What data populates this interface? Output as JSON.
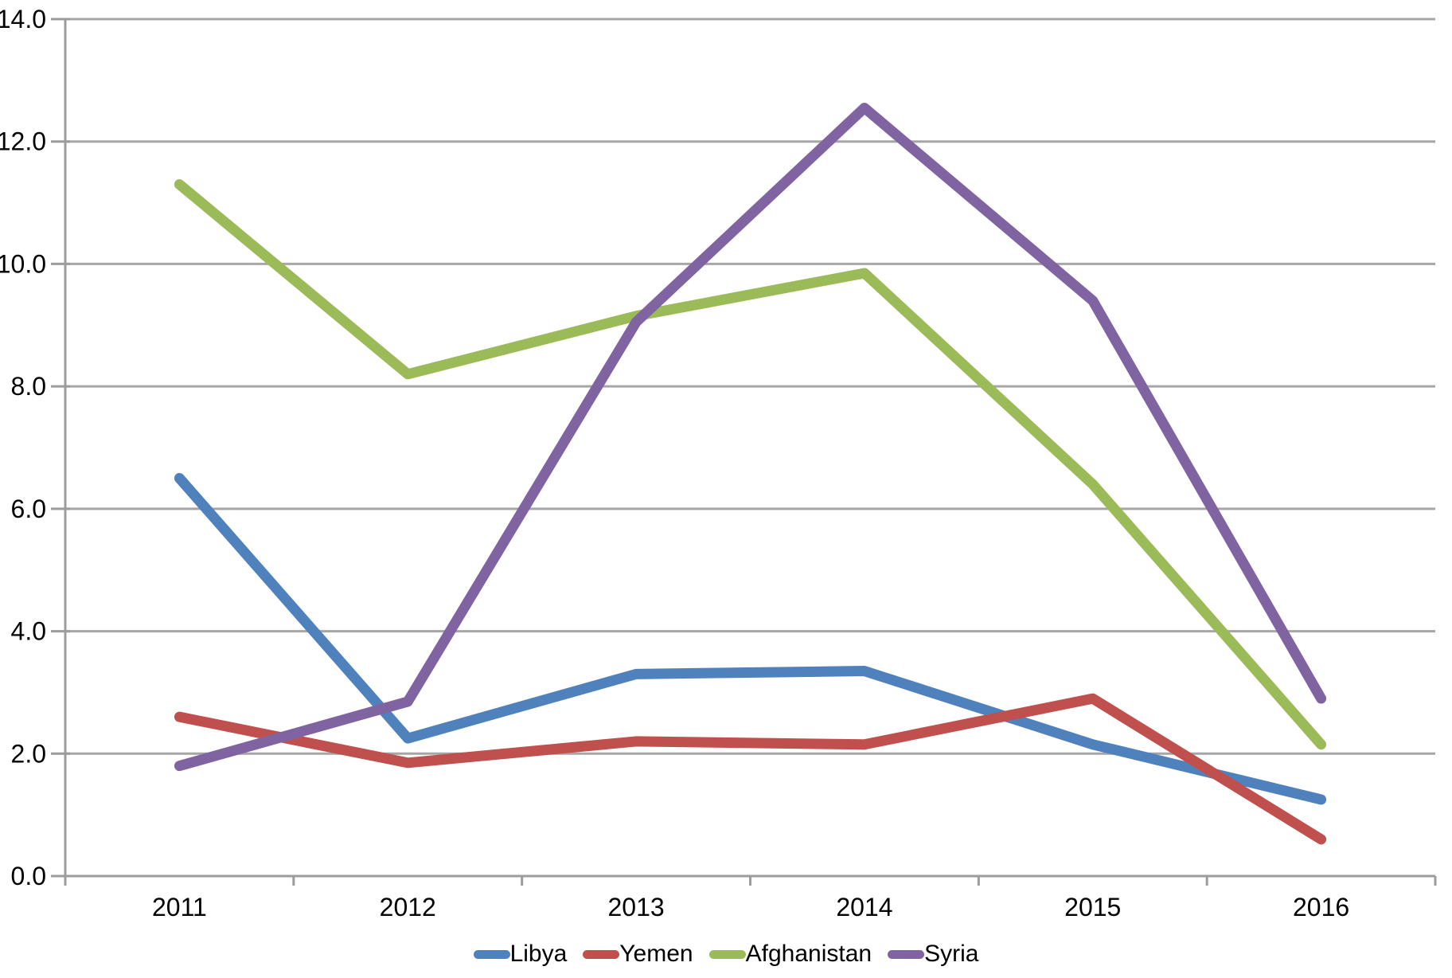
{
  "chart_data": {
    "type": "line",
    "categories": [
      "2011",
      "2012",
      "2013",
      "2014",
      "2015",
      "2016"
    ],
    "series": [
      {
        "name": "Libya",
        "color": "#4F81BD",
        "values": [
          6.5,
          2.25,
          3.3,
          3.35,
          2.15,
          1.25
        ]
      },
      {
        "name": "Yemen",
        "color": "#C0504D",
        "values": [
          2.6,
          1.85,
          2.2,
          2.15,
          2.9,
          0.6
        ]
      },
      {
        "name": "Afghanistan",
        "color": "#9BBB59",
        "values": [
          11.3,
          8.2,
          9.15,
          9.85,
          6.4,
          2.15
        ]
      },
      {
        "name": "Syria",
        "color": "#8064A2",
        "values": [
          1.8,
          2.85,
          9.05,
          12.55,
          9.4,
          2.9
        ]
      }
    ],
    "title": "",
    "xlabel": "",
    "ylabel": "",
    "ylim": [
      0,
      14
    ],
    "ytick_step": 2,
    "ytick_labels": [
      "0.0",
      "2.0",
      "4.0",
      "6.0",
      "8.0",
      "10.0",
      "12.0",
      "14.0"
    ],
    "grid": true,
    "legend_position": "bottom",
    "colors": {
      "grid_line": "#A6A6A6",
      "axis_line": "#9C9C9C",
      "text": "#000000",
      "background": "#FFFFFF"
    }
  }
}
